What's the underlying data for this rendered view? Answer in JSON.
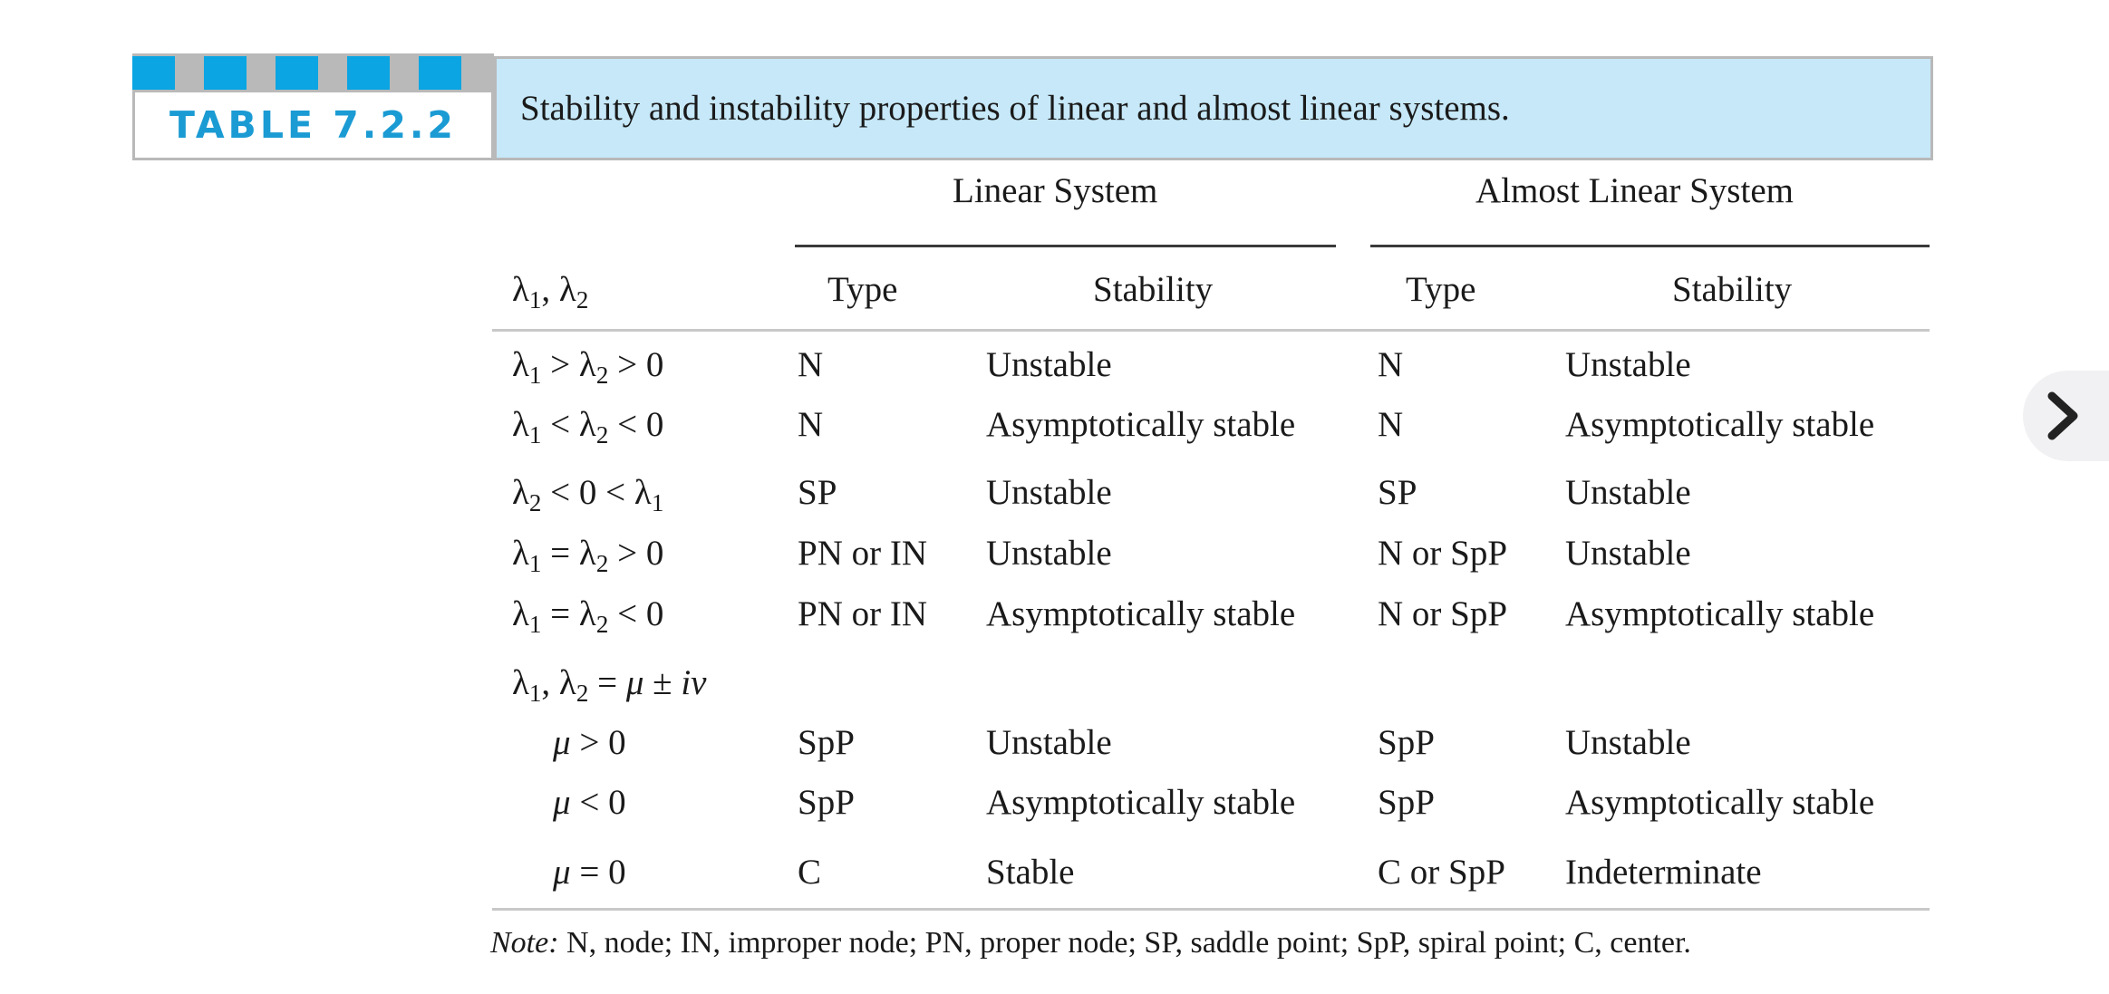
{
  "table": {
    "label": "TABLE 7.2.2",
    "caption": "Stability and instability properties of linear and almost linear systems.",
    "group_headers": {
      "linear": "Linear System",
      "almost_linear": "Almost Linear System"
    },
    "column_headers": {
      "eigen": "λ1, λ2",
      "linear_type": "Type",
      "linear_stability": "Stability",
      "almost_type": "Type",
      "almost_stability": "Stability"
    },
    "rows": [
      {
        "eigen": "λ1 > λ2 > 0",
        "linear_type": "N",
        "linear_stability": "Unstable",
        "almost_type": "N",
        "almost_stability": "Unstable"
      },
      {
        "eigen": "λ1 < λ2 < 0",
        "linear_type": "N",
        "linear_stability": "Asymptotically stable",
        "almost_type": "N",
        "almost_stability": "Asymptotically stable"
      },
      {
        "eigen": "λ2 < 0 < λ1",
        "linear_type": "SP",
        "linear_stability": "Unstable",
        "almost_type": "SP",
        "almost_stability": "Unstable"
      },
      {
        "eigen": "λ1 = λ2 > 0",
        "linear_type": "PN or IN",
        "linear_stability": "Unstable",
        "almost_type": "N or SpP",
        "almost_stability": "Unstable"
      },
      {
        "eigen": "λ1 = λ2 < 0",
        "linear_type": "PN or IN",
        "linear_stability": "Asymptotically stable",
        "almost_type": "N or SpP",
        "almost_stability": "Asymptotically stable"
      },
      {
        "eigen": "λ1, λ2 = μ ± iν",
        "linear_type": "",
        "linear_stability": "",
        "almost_type": "",
        "almost_stability": ""
      },
      {
        "eigen": "μ > 0",
        "linear_type": "SpP",
        "linear_stability": "Unstable",
        "almost_type": "SpP",
        "almost_stability": "Unstable"
      },
      {
        "eigen": "μ < 0",
        "linear_type": "SpP",
        "linear_stability": "Asymptotically stable",
        "almost_type": "SpP",
        "almost_stability": "Asymptotically stable"
      },
      {
        "eigen": "μ = 0",
        "linear_type": "C",
        "linear_stability": "Stable",
        "almost_type": "C or SpP",
        "almost_stability": "Indeterminate"
      }
    ],
    "note_label": "Note:",
    "note_text": " N, node; IN, improper node; PN, proper node; SP, saddle point; SpP, spiral point; C, center."
  },
  "navigation": {
    "next_icon": "chevron-right-icon"
  },
  "colors": {
    "accent_blue": "#0aa5e2",
    "label_text": "#1b9bd3",
    "caption_bg": "#c6e8f8",
    "border_gray": "#b9b9b9",
    "text": "#1a1a1a",
    "rule": "#c8c8c8"
  }
}
